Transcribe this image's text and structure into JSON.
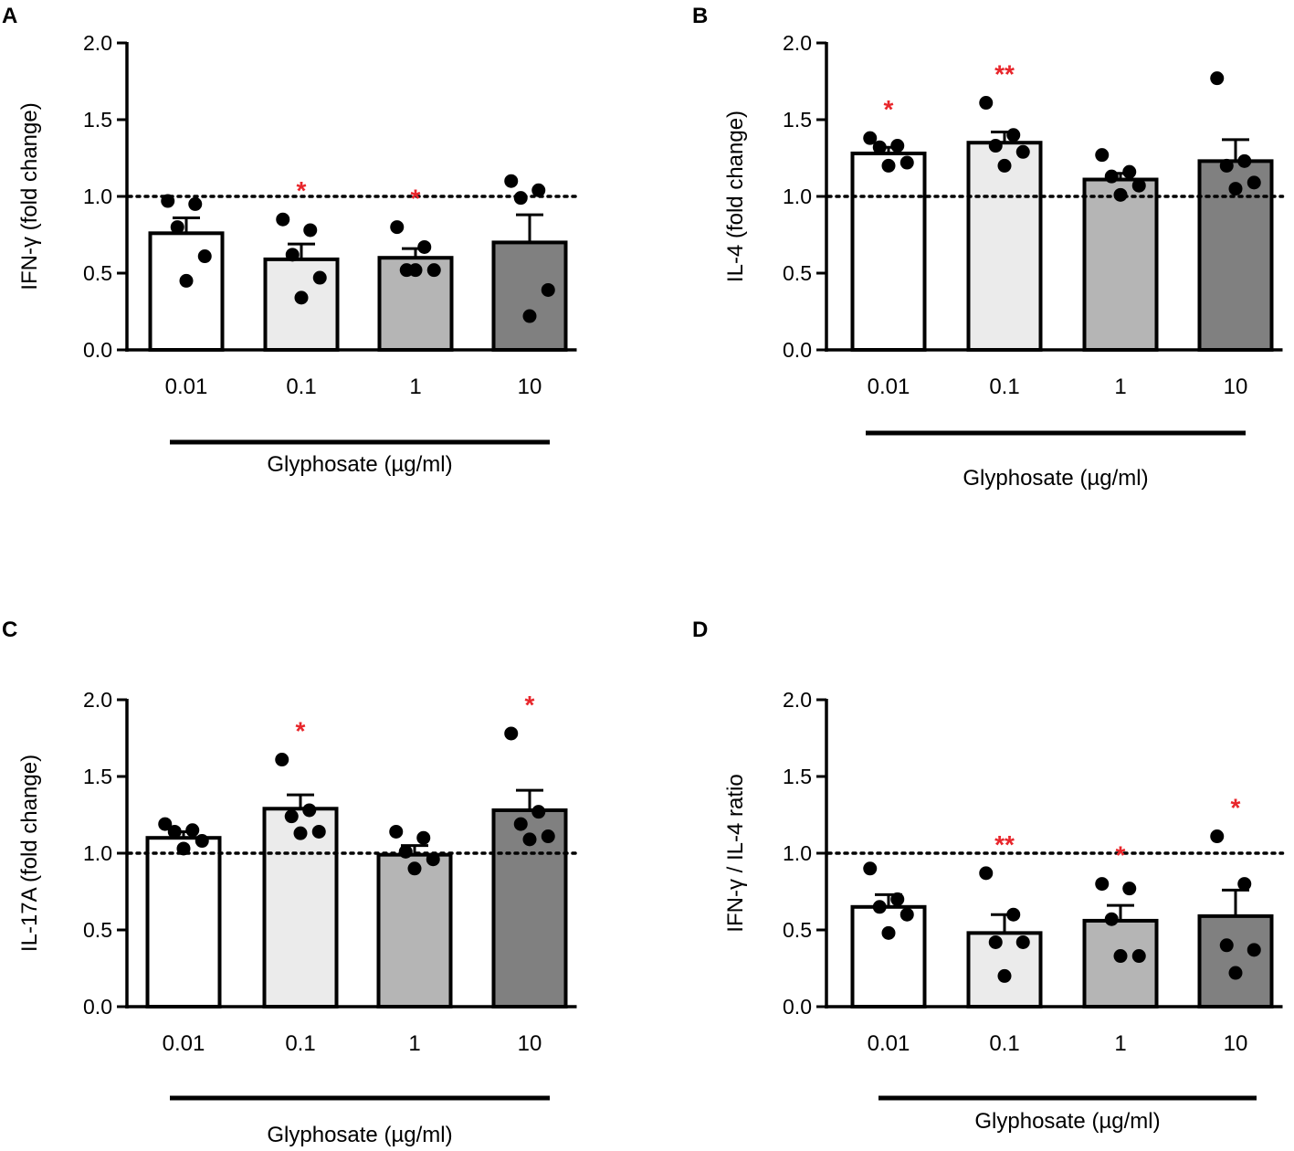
{
  "figure": {
    "xlabel_text": "Glyphosate (µg/ml)",
    "colors": {
      "bar_fills": [
        "#ffffff",
        "#ebebeb",
        "#b5b5b5",
        "#808080"
      ],
      "stroke": "#000000",
      "significance": "#e8262b",
      "points": "#000000"
    }
  },
  "chart_data": [
    {
      "panel": "A",
      "type": "bar",
      "ylabel": "IFN-γ (fold change)",
      "xlabel": "Glyphosate (µg/ml)",
      "categories": [
        "0.01",
        "0.1",
        "1",
        "10"
      ],
      "values": [
        0.76,
        0.59,
        0.6,
        0.7
      ],
      "sem": [
        0.1,
        0.1,
        0.06,
        0.18
      ],
      "points": [
        [
          0.97,
          0.95,
          0.8,
          0.61,
          0.45
        ],
        [
          0.85,
          0.78,
          0.62,
          0.47,
          0.34
        ],
        [
          0.8,
          0.67,
          0.52,
          0.52,
          0.52
        ],
        [
          1.1,
          1.04,
          0.99,
          0.39,
          0.22
        ]
      ],
      "significance": [
        "",
        "*",
        "*",
        ""
      ],
      "ylim": [
        0,
        2
      ],
      "yticks": [
        "0.0",
        "0.5",
        "1.0",
        "1.5",
        "2.0"
      ],
      "reference_line": 1.0
    },
    {
      "panel": "B",
      "type": "bar",
      "ylabel": "IL-4 (fold change)",
      "xlabel": "Glyphosate (µg/ml)",
      "categories": [
        "0.01",
        "0.1",
        "1",
        "10"
      ],
      "values": [
        1.28,
        1.35,
        1.11,
        1.23
      ],
      "sem": [
        0.04,
        0.07,
        0.04,
        0.14
      ],
      "points": [
        [
          1.38,
          1.33,
          1.32,
          1.22,
          1.2
        ],
        [
          1.61,
          1.4,
          1.33,
          1.29,
          1.2
        ],
        [
          1.27,
          1.16,
          1.13,
          1.07,
          1.01
        ],
        [
          1.77,
          1.23,
          1.2,
          1.09,
          1.05
        ]
      ],
      "significance": [
        "*",
        "**",
        "",
        ""
      ],
      "ylim": [
        0,
        2
      ],
      "yticks": [
        "0.0",
        "0.5",
        "1.0",
        "1.5",
        "2.0"
      ],
      "reference_line": 1.0
    },
    {
      "panel": "C",
      "type": "bar",
      "ylabel": "IL-17A (fold change)",
      "xlabel": "Glyphosate (µg/ml)",
      "categories": [
        "0.01",
        "0.1",
        "1",
        "10"
      ],
      "values": [
        1.1,
        1.29,
        0.99,
        1.28
      ],
      "sem": [
        0.04,
        0.09,
        0.06,
        0.13
      ],
      "points": [
        [
          1.19,
          1.15,
          1.14,
          1.08,
          1.03
        ],
        [
          1.61,
          1.28,
          1.24,
          1.14,
          1.13
        ],
        [
          1.14,
          1.1,
          1.01,
          0.96,
          0.9
        ],
        [
          1.78,
          1.27,
          1.19,
          1.11,
          1.09
        ]
      ],
      "significance": [
        "",
        "*",
        "",
        "*"
      ],
      "ylim": [
        0,
        2
      ],
      "yticks": [
        "0.0",
        "0.5",
        "1.0",
        "1.5",
        "2.0"
      ],
      "reference_line": 1.0
    },
    {
      "panel": "D",
      "type": "bar",
      "ylabel": "IFN-γ / IL-4 ratio",
      "xlabel": "Glyphosate (µg/ml)",
      "categories": [
        "0.01",
        "0.1",
        "1",
        "10"
      ],
      "values": [
        0.65,
        0.48,
        0.56,
        0.59
      ],
      "sem": [
        0.08,
        0.12,
        0.1,
        0.17
      ],
      "points": [
        [
          0.9,
          0.7,
          0.65,
          0.6,
          0.48
        ],
        [
          0.87,
          0.6,
          0.42,
          0.42,
          0.2
        ],
        [
          0.8,
          0.77,
          0.57,
          0.33,
          0.33
        ],
        [
          1.11,
          0.8,
          0.4,
          0.37,
          0.22
        ]
      ],
      "significance": [
        "",
        "**",
        "*",
        "*"
      ],
      "ylim": [
        0,
        2
      ],
      "yticks": [
        "0.0",
        "0.5",
        "1.0",
        "1.5",
        "2.0"
      ],
      "reference_line": 1.0
    }
  ]
}
